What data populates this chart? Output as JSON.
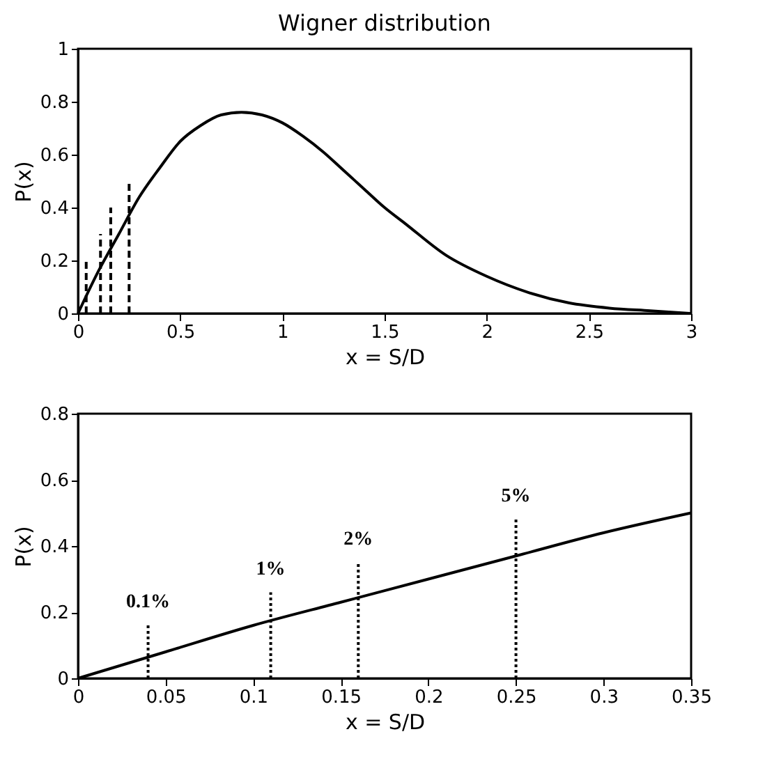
{
  "chart_data": [
    {
      "type": "line",
      "title": "Wigner distribution",
      "xlabel": "x = S/D",
      "ylabel": "P(x)",
      "xlim": [
        0,
        3
      ],
      "ylim": [
        0,
        1
      ],
      "xticks": [
        0,
        0.5,
        1,
        1.5,
        2,
        2.5,
        3
      ],
      "yticks": [
        0,
        0.2,
        0.4,
        0.6,
        0.8,
        1
      ],
      "grid": false,
      "marker": "none",
      "series": [
        {
          "color": "#000000",
          "line_style": "solid",
          "x": [
            0,
            0.1,
            0.2,
            0.3,
            0.4,
            0.5,
            0.6,
            0.7,
            0.8,
            0.9,
            1.0,
            1.1,
            1.2,
            1.3,
            1.4,
            1.5,
            1.6,
            1.8,
            2.0,
            2.2,
            2.4,
            2.6,
            2.8,
            3.0
          ],
          "values": [
            0,
            0.16,
            0.3,
            0.44,
            0.55,
            0.65,
            0.71,
            0.75,
            0.76,
            0.75,
            0.72,
            0.67,
            0.61,
            0.54,
            0.47,
            0.4,
            0.34,
            0.22,
            0.14,
            0.08,
            0.04,
            0.02,
            0.01,
            0.0
          ]
        },
        {
          "color": "#000000",
          "line_style": "dashed",
          "x": [
            0.04,
            0.04
          ],
          "values": [
            0,
            0.2
          ]
        },
        {
          "color": "#000000",
          "line_style": "dashed",
          "x": [
            0.11,
            0.11
          ],
          "values": [
            0,
            0.3
          ]
        },
        {
          "color": "#000000",
          "line_style": "dashed",
          "x": [
            0.16,
            0.16
          ],
          "values": [
            0,
            0.4
          ]
        },
        {
          "color": "#000000",
          "line_style": "dashed",
          "x": [
            0.25,
            0.25
          ],
          "values": [
            0,
            0.5
          ]
        }
      ]
    },
    {
      "type": "line",
      "xlabel": "x = S/D",
      "ylabel": "P(x)",
      "xlim": [
        0,
        0.35
      ],
      "ylim": [
        0,
        0.8
      ],
      "xticks": [
        0,
        0.05,
        0.1,
        0.15,
        0.2,
        0.25,
        0.3,
        0.35
      ],
      "yticks": [
        0,
        0.2,
        0.4,
        0.6,
        0.8
      ],
      "grid": false,
      "marker": "none",
      "series": [
        {
          "color": "#000000",
          "line_style": "solid",
          "x": [
            0,
            0.05,
            0.1,
            0.15,
            0.2,
            0.25,
            0.3,
            0.35
          ],
          "values": [
            0,
            0.08,
            0.16,
            0.23,
            0.3,
            0.37,
            0.44,
            0.5
          ]
        },
        {
          "color": "#000000",
          "line_style": "dotted",
          "x": [
            0.04,
            0.04
          ],
          "values": [
            0,
            0.16
          ]
        },
        {
          "color": "#000000",
          "line_style": "dotted",
          "x": [
            0.11,
            0.11
          ],
          "values": [
            0,
            0.26
          ]
        },
        {
          "color": "#000000",
          "line_style": "dotted",
          "x": [
            0.16,
            0.16
          ],
          "values": [
            0,
            0.35
          ]
        },
        {
          "color": "#000000",
          "line_style": "dotted",
          "x": [
            0.25,
            0.25
          ],
          "values": [
            0,
            0.48
          ]
        }
      ],
      "annotations": [
        {
          "text": "0.1%",
          "x": 0.04,
          "y": 0.16
        },
        {
          "text": "1%",
          "x": 0.11,
          "y": 0.26
        },
        {
          "text": "2%",
          "x": 0.16,
          "y": 0.35
        },
        {
          "text": "5%",
          "x": 0.25,
          "y": 0.48
        }
      ]
    }
  ]
}
